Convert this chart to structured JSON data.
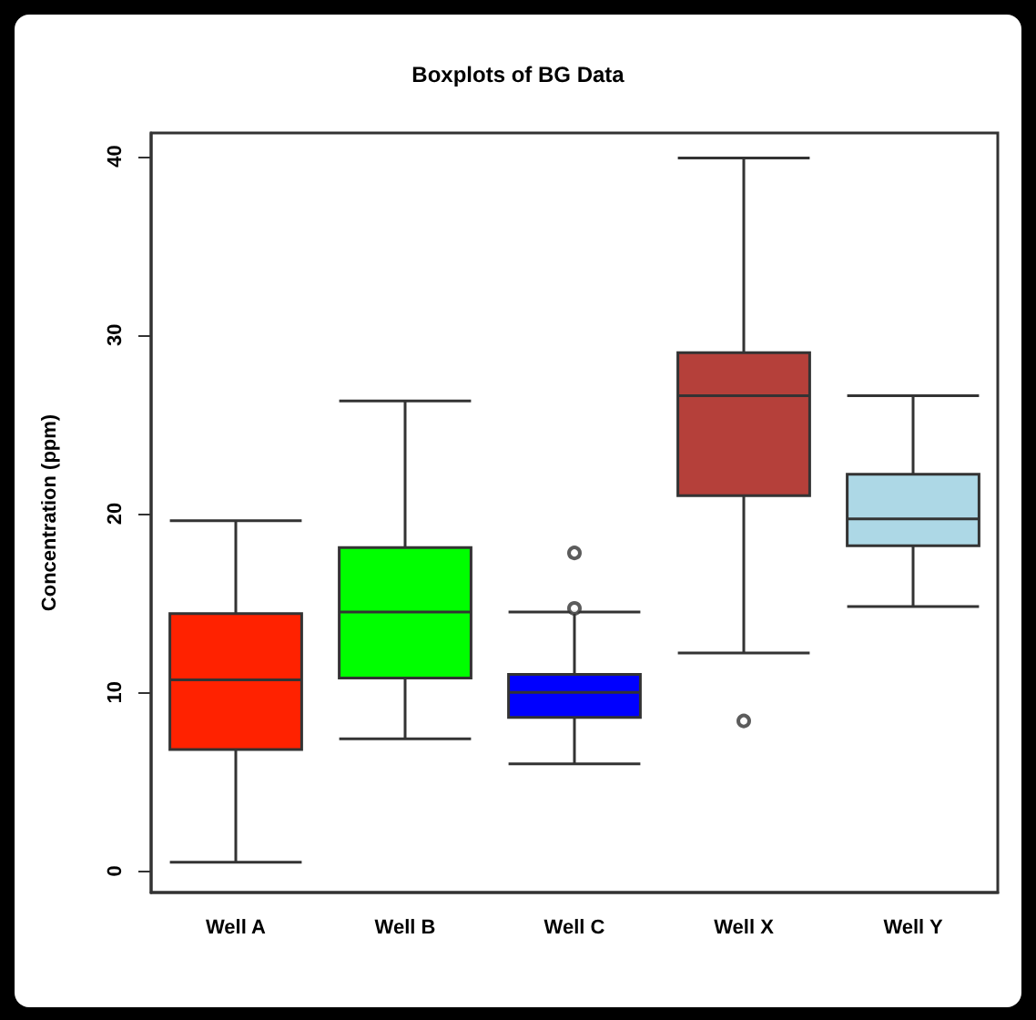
{
  "chart_data": {
    "type": "box",
    "title": "Boxplots of BG Data",
    "ylabel": "Concentration (ppm)",
    "categories": [
      "Well A",
      "Well B",
      "Well C",
      "Well X",
      "Well Y"
    ],
    "colors": [
      "#ff2200",
      "#00ff00",
      "#0000ff",
      "#b5403a",
      "#add8e6"
    ],
    "boxes": [
      {
        "low": 0.5,
        "q1": 6.8,
        "median": 10.7,
        "q3": 14.4,
        "high": 19.6
      },
      {
        "low": 7.4,
        "q1": 10.8,
        "median": 14.5,
        "q3": 18.1,
        "high": 26.3
      },
      {
        "low": 6.0,
        "q1": 8.6,
        "median": 10.0,
        "q3": 11.0,
        "high": 14.5,
        "outliers": [
          14.7,
          17.8
        ]
      },
      {
        "low": 12.2,
        "q1": 21.0,
        "median": 26.6,
        "q3": 29.0,
        "high": 39.9,
        "outliers": [
          8.4
        ]
      },
      {
        "low": 14.8,
        "q1": 18.2,
        "median": 19.7,
        "q3": 22.2,
        "high": 26.6
      }
    ],
    "ylim": [
      -1.2,
      41.3
    ],
    "yticks": [
      0,
      10,
      20,
      30,
      40
    ],
    "grid": false,
    "marker": "circle"
  }
}
